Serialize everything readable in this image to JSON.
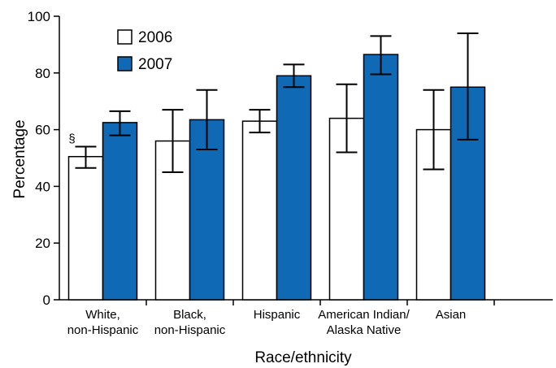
{
  "chart_data": {
    "type": "bar",
    "title": "",
    "xlabel": "Race/ethnicity",
    "ylabel": "Percentage",
    "ylim": [
      0,
      100
    ],
    "yticks": [
      0,
      20,
      40,
      60,
      80,
      100
    ],
    "grid": false,
    "legend_position": "top-left",
    "categories": [
      [
        "White,",
        "non-Hispanic"
      ],
      [
        "Black,",
        "non-Hispanic"
      ],
      [
        "Hispanic"
      ],
      [
        "American Indian/",
        "Alaska Native"
      ],
      [
        "Asian"
      ]
    ],
    "series": [
      {
        "name": "2006",
        "color": "#ffffff",
        "values": [
          50.5,
          56,
          63,
          64,
          60
        ],
        "ci_low": [
          46.5,
          45,
          59,
          52,
          46
        ],
        "ci_high": [
          54,
          67,
          67,
          76,
          74
        ]
      },
      {
        "name": "2007",
        "color": "#0f69b4",
        "values": [
          62.5,
          63.5,
          79,
          86.5,
          75
        ],
        "ci_low": [
          58,
          53,
          75,
          79.5,
          56.5
        ],
        "ci_high": [
          66.5,
          74,
          83,
          93,
          94
        ]
      }
    ],
    "annotations": [
      {
        "text": "§",
        "series": 0,
        "category": 0
      }
    ]
  }
}
